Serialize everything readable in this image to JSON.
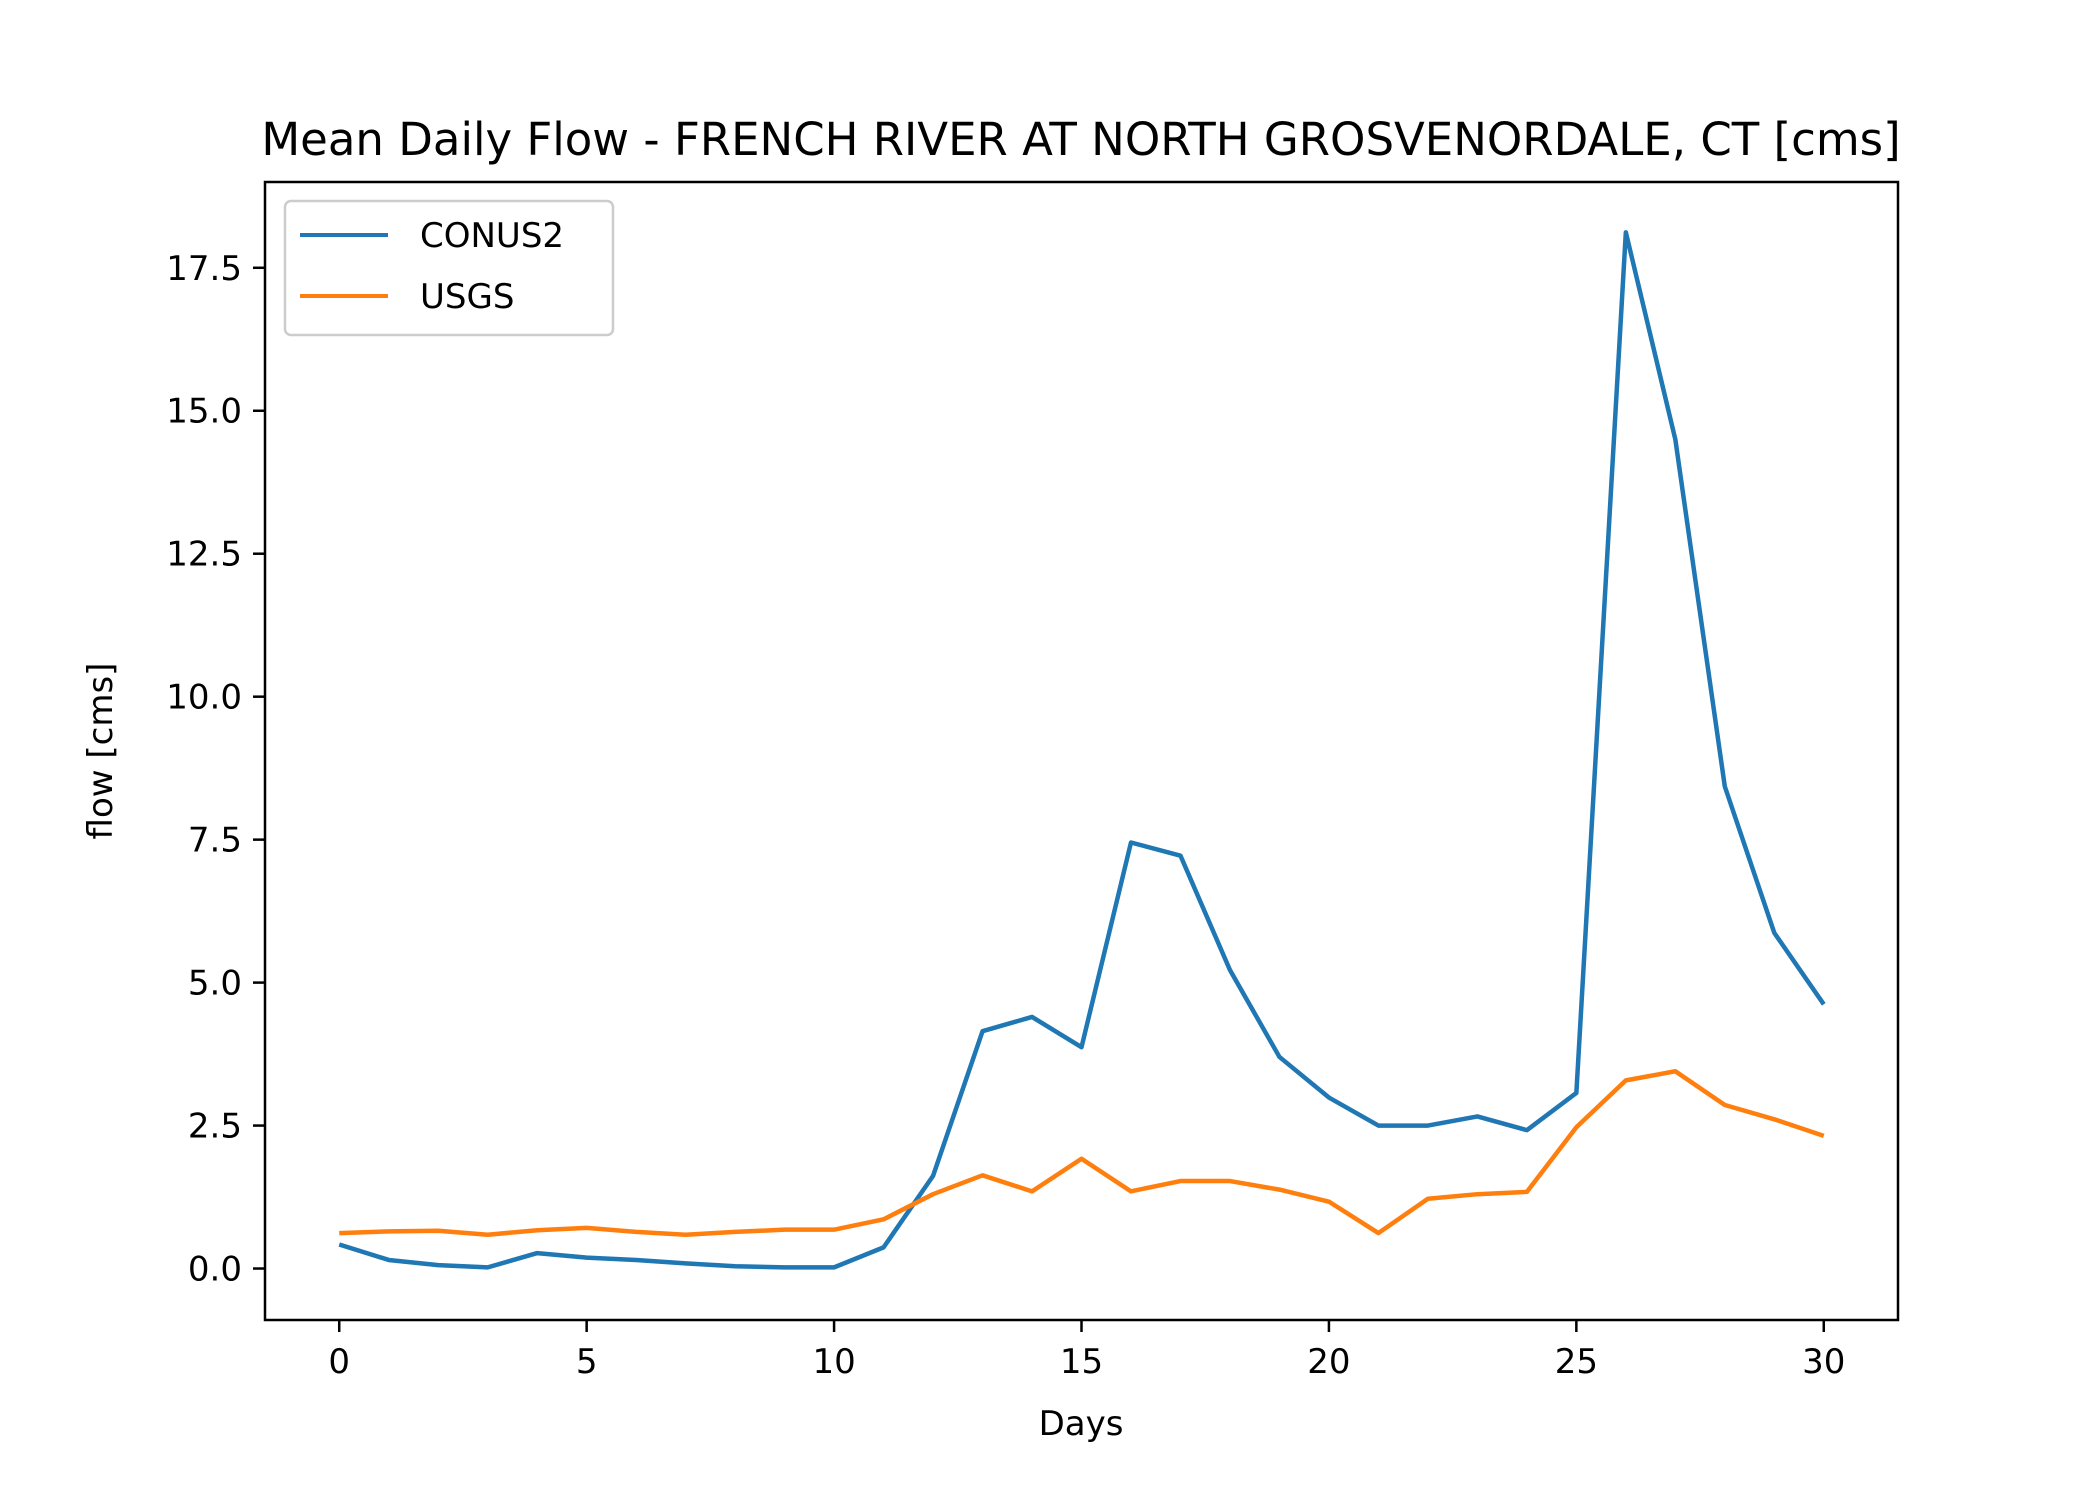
{
  "chart_data": {
    "type": "line",
    "title": "Mean Daily Flow - FRENCH RIVER AT NORTH GROSVENORDALE, CT [cms]",
    "xlabel": "Days",
    "ylabel": "flow [cms]",
    "xlim": [
      -1.5,
      31.5
    ],
    "ylim": [
      -0.9,
      19.0
    ],
    "xticks": [
      0,
      5,
      10,
      15,
      20,
      25,
      30
    ],
    "xtick_labels": [
      "0",
      "5",
      "10",
      "15",
      "20",
      "25",
      "30"
    ],
    "yticks": [
      0.0,
      2.5,
      5.0,
      7.5,
      10.0,
      12.5,
      15.0,
      17.5
    ],
    "ytick_labels": [
      "0.0",
      "2.5",
      "5.0",
      "7.5",
      "10.0",
      "12.5",
      "15.0",
      "17.5"
    ],
    "grid": false,
    "legend_position": "top-left",
    "x": [
      0,
      1,
      2,
      3,
      4,
      5,
      6,
      7,
      8,
      9,
      10,
      11,
      12,
      13,
      14,
      15,
      16,
      17,
      18,
      19,
      20,
      21,
      22,
      23,
      24,
      25,
      26,
      27,
      28,
      29,
      30
    ],
    "series": [
      {
        "name": "CONUS2",
        "color": "#1f77b4",
        "values": [
          0.42,
          0.15,
          0.06,
          0.02,
          0.27,
          0.19,
          0.15,
          0.09,
          0.04,
          0.02,
          0.02,
          0.37,
          1.62,
          4.15,
          4.4,
          3.87,
          7.45,
          7.22,
          5.22,
          3.7,
          2.99,
          2.5,
          2.5,
          2.66,
          2.42,
          3.07,
          18.12,
          14.5,
          8.43,
          5.87,
          4.62
        ]
      },
      {
        "name": "USGS",
        "color": "#ff7f0e",
        "values": [
          0.62,
          0.65,
          0.66,
          0.59,
          0.67,
          0.71,
          0.64,
          0.59,
          0.64,
          0.68,
          0.68,
          0.86,
          1.3,
          1.63,
          1.35,
          1.92,
          1.35,
          1.53,
          1.53,
          1.38,
          1.17,
          0.62,
          1.22,
          1.3,
          1.34,
          2.47,
          3.29,
          3.45,
          2.86,
          2.61,
          2.32
        ]
      }
    ]
  }
}
